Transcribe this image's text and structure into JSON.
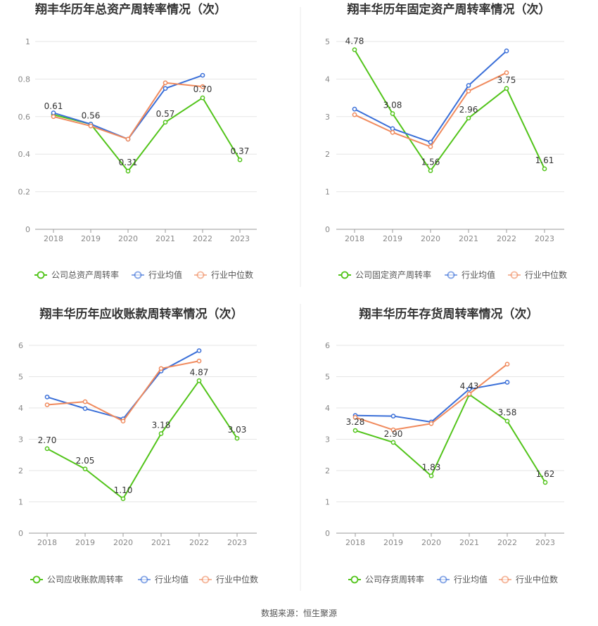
{
  "source_text": "数据来源：恒生聚源",
  "colors": {
    "company": "#52c41a",
    "avg": "#3a6fd8",
    "median": "#f08a5d",
    "grid": "#e6e6e6",
    "axis": "#999999",
    "divider": "#ebebeb"
  },
  "chart_data": [
    {
      "type": "line",
      "title": "翔丰华历年总资产周转率情况（次）",
      "categories": [
        "2018",
        "2019",
        "2020",
        "2021",
        "2022",
        "2023"
      ],
      "ylim": [
        0,
        1
      ],
      "yticks": [
        "0",
        "0.2",
        "0.4",
        "0.6",
        "0.8",
        "1"
      ],
      "ytick_values": [
        0,
        0.2,
        0.4,
        0.6,
        0.8,
        1
      ],
      "series": [
        {
          "name": "公司总资产周转率",
          "values": [
            0.61,
            0.56,
            0.31,
            0.57,
            0.7,
            0.37
          ],
          "labels": [
            "0.61",
            "0.56",
            "0.31",
            "0.57",
            "0.70",
            "0.37"
          ]
        },
        {
          "name": "行业均值",
          "values": [
            0.62,
            0.56,
            0.48,
            0.75,
            0.82,
            null
          ]
        },
        {
          "name": "行业中位数",
          "values": [
            0.6,
            0.55,
            0.48,
            0.78,
            0.76,
            null
          ]
        }
      ]
    },
    {
      "type": "line",
      "title": "翔丰华历年固定资产周转率情况（次）",
      "categories": [
        "2018",
        "2019",
        "2020",
        "2021",
        "2022",
        "2023"
      ],
      "ylim": [
        0,
        5
      ],
      "yticks": [
        "0",
        "1",
        "2",
        "3",
        "4",
        "5"
      ],
      "ytick_values": [
        0,
        1,
        2,
        3,
        4,
        5
      ],
      "series": [
        {
          "name": "公司固定资产周转率",
          "values": [
            4.78,
            3.08,
            1.56,
            2.96,
            3.75,
            1.61
          ],
          "labels": [
            "4.78",
            "3.08",
            "1.56",
            "2.96",
            "3.75",
            "1.61"
          ]
        },
        {
          "name": "行业均值",
          "values": [
            3.2,
            2.68,
            2.32,
            3.83,
            4.75,
            null
          ]
        },
        {
          "name": "行业中位数",
          "values": [
            3.05,
            2.58,
            2.2,
            3.68,
            4.17,
            null
          ]
        }
      ]
    },
    {
      "type": "line",
      "title": "翔丰华历年应收账款周转率情况（次）",
      "categories": [
        "2018",
        "2019",
        "2020",
        "2021",
        "2022",
        "2023"
      ],
      "ylim": [
        0,
        6
      ],
      "yticks": [
        "0",
        "1",
        "2",
        "3",
        "4",
        "5",
        "6"
      ],
      "ytick_values": [
        0,
        1,
        2,
        3,
        4,
        5,
        6
      ],
      "series": [
        {
          "name": "公司应收账款周转率",
          "values": [
            2.7,
            2.05,
            1.1,
            3.18,
            4.87,
            3.03
          ],
          "labels": [
            "2.70",
            "2.05",
            "1.10",
            "3.18",
            "4.87",
            "3.03"
          ]
        },
        {
          "name": "行业均值",
          "values": [
            4.35,
            3.98,
            3.65,
            5.18,
            5.83,
            null
          ]
        },
        {
          "name": "行业中位数",
          "values": [
            4.1,
            4.2,
            3.58,
            5.26,
            5.5,
            null
          ]
        }
      ]
    },
    {
      "type": "line",
      "title": "翔丰华历年存货周转率情况（次）",
      "categories": [
        "2018",
        "2019",
        "2020",
        "2021",
        "2022",
        "2023"
      ],
      "ylim": [
        0,
        6
      ],
      "yticks": [
        "0",
        "1",
        "2",
        "3",
        "4",
        "5",
        "6"
      ],
      "ytick_values": [
        0,
        1,
        2,
        3,
        4,
        5,
        6
      ],
      "series": [
        {
          "name": "公司存货周转率",
          "values": [
            3.28,
            2.9,
            1.83,
            4.43,
            3.58,
            1.62
          ],
          "labels": [
            "3.28",
            "2.90",
            "1.83",
            "4.43",
            "3.58",
            "1.62"
          ]
        },
        {
          "name": "行业均值",
          "values": [
            3.76,
            3.74,
            3.55,
            4.6,
            4.82,
            null
          ]
        },
        {
          "name": "行业中位数",
          "values": [
            3.7,
            3.3,
            3.5,
            4.45,
            5.4,
            null
          ]
        }
      ]
    }
  ]
}
